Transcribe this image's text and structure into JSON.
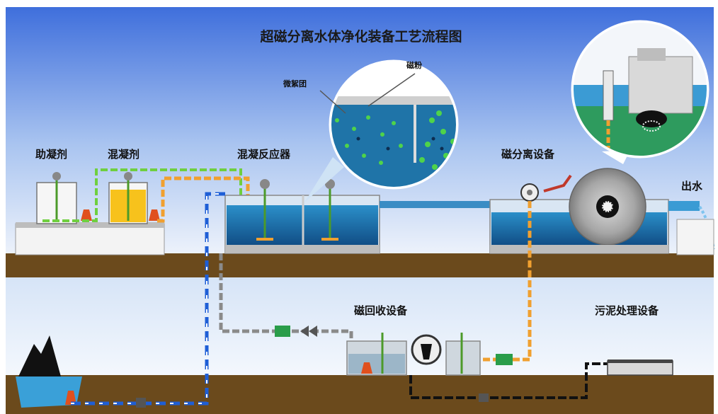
{
  "title": "超磁分离水体净化装备工艺流程图",
  "labels": {
    "coagulant_aid": "助凝剂",
    "coagulant": "混凝剂",
    "reactor": "混凝反应器",
    "micro_floc": "微絮团",
    "magnetic_powder": "磁粉",
    "separator": "磁分离设备",
    "outlet": "出水",
    "recovery": "磁回收设备",
    "sludge": "污泥处理设备"
  },
  "colors": {
    "sky_top": "#4f7fe0",
    "sky_bottom": "#eaf1fb",
    "ground": "#6b4a1c",
    "water": "#1f6fa8",
    "pipe_green": "#6fcf3f",
    "pipe_orange": "#f0a030",
    "pipe_blue": "#1e5ed6",
    "pipe_gray": "#8a8a8a"
  }
}
